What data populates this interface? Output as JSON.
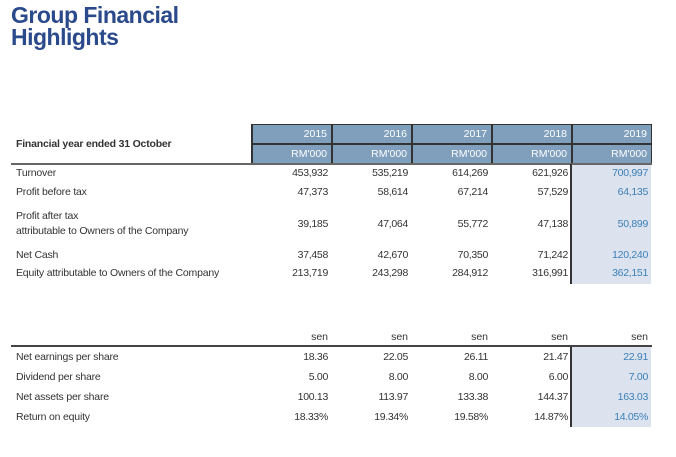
{
  "title_line1": "Group Financial",
  "title_line2": "Highlights",
  "table1": {
    "header_label": "Financial year ended 31 October",
    "years": [
      "2015",
      "2016",
      "2017",
      "2018",
      "2019"
    ],
    "unit": "RM'000",
    "rows": [
      {
        "label": "Turnover",
        "values": [
          "453,932",
          "535,219",
          "614,269",
          "621,926",
          "700,997"
        ]
      },
      {
        "label": "Profit before tax",
        "values": [
          "47,373",
          "58,614",
          "67,214",
          "57,529",
          "64,135"
        ]
      },
      {
        "label": "Profit after tax",
        "label2": "attributable to Owners of the Company",
        "values": [
          "39,185",
          "47,064",
          "55,772",
          "47,138",
          "50,899"
        ]
      },
      {
        "label": "Net Cash",
        "values": [
          "37,458",
          "42,670",
          "70,350",
          "71,242",
          "120,240"
        ]
      },
      {
        "label": "Equity attributable to Owners of the Company",
        "values": [
          "213,719",
          "243,298",
          "284,912",
          "316,991",
          "362,151"
        ]
      }
    ]
  },
  "table2": {
    "unit": "sen",
    "rows": [
      {
        "label": "Net earnings per share",
        "values": [
          "18.36",
          "22.05",
          "26.11",
          "21.47",
          "22.91"
        ]
      },
      {
        "label": "Dividend per share",
        "values": [
          "5.00",
          "8.00",
          "8.00",
          "6.00",
          "7.00"
        ]
      },
      {
        "label": "Net assets per share",
        "values": [
          "100.13",
          "113.97",
          "133.38",
          "144.37",
          "163.03"
        ]
      },
      {
        "label": "Return on equity",
        "values": [
          "18.33%",
          "19.34%",
          "19.58%",
          "14.87%",
          "14.05%"
        ]
      }
    ]
  },
  "colors": {
    "title": "#2b4a8b",
    "header_fill": "#7f9fbd",
    "highlight_shade": "#dde3ee",
    "highlight_text": "#3a7fb8"
  }
}
